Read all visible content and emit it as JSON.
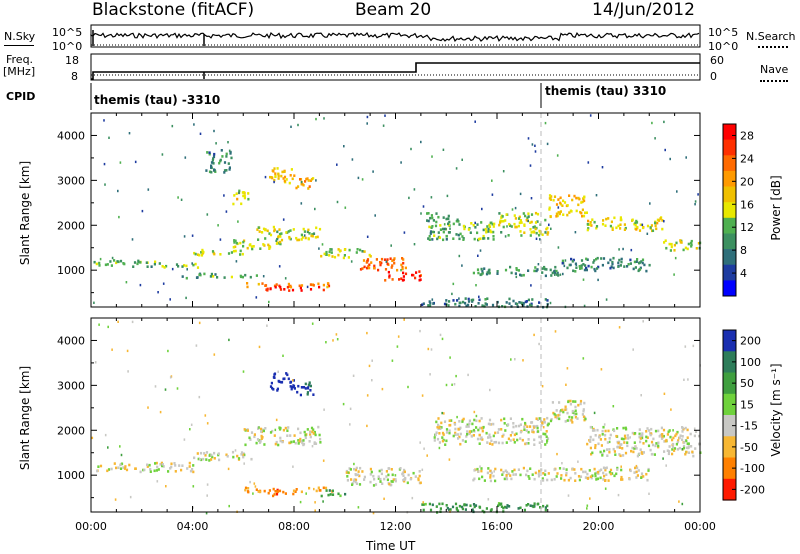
{
  "header": {
    "station": "Blackstone (fitACF)",
    "beam": "Beam 20",
    "date": "14/Jun/2012"
  },
  "top_panels": {
    "nsky_label": "N.Sky",
    "nsky_ticks": [
      "10^5",
      "10^0"
    ],
    "nsearch_label": "N.Search",
    "nsearch_ticks": [
      "10^5",
      "10^0"
    ],
    "freq_label": "Freq.",
    "freq_unit": "[MHz]",
    "freq_ticks": [
      "18",
      "8"
    ],
    "nave_label": "Nave",
    "nave_ticks": [
      "60",
      "0"
    ],
    "cpid_label": "CPID",
    "cpid_left": "themis (tau) -3310",
    "cpid_right": "themis (tau) 3310"
  },
  "chart_data": [
    {
      "type": "heatmap",
      "name": "power",
      "ylabel": "Slant Range [km]",
      "yticks": [
        "4000",
        "3000",
        "2000",
        "1000"
      ],
      "ylim": [
        180,
        4500
      ],
      "xlim": [
        0,
        24
      ],
      "colorbar_label": "Power [dB]",
      "colorbar_ticks": [
        "28",
        "24",
        "20",
        "16",
        "12",
        "8",
        "4"
      ],
      "colorbar_range": [
        0,
        30
      ],
      "colors": [
        "#0000ff",
        "#1e3ca0",
        "#2f6f7a",
        "#3c9060",
        "#4fb050",
        "#e8e800",
        "#f0c000",
        "#ff9a00",
        "#ff6a00",
        "#ff3000",
        "#ff0000"
      ],
      "features": [
        {
          "t": [
            0.0,
            2.8
          ],
          "r": [
            1100,
            1250
          ],
          "v": 11
        },
        {
          "t": [
            2.8,
            4.2
          ],
          "r": [
            1080,
            1180
          ],
          "v": 12
        },
        {
          "t": [
            4.0,
            6.0
          ],
          "r": [
            1350,
            1500
          ],
          "v": 14
        },
        {
          "t": [
            5.5,
            7.5
          ],
          "r": [
            1500,
            1700
          ],
          "v": 15
        },
        {
          "t": [
            6.5,
            9.0
          ],
          "r": [
            1700,
            2000
          ],
          "v": 14
        },
        {
          "t": [
            7.0,
            8.0
          ],
          "r": [
            2900,
            3300
          ],
          "v": 18
        },
        {
          "t": [
            8.0,
            8.8
          ],
          "r": [
            2800,
            3100
          ],
          "v": 20
        },
        {
          "t": [
            5.5,
            6.2
          ],
          "r": [
            2500,
            2800
          ],
          "v": 16
        },
        {
          "t": [
            4.5,
            5.5
          ],
          "r": [
            3200,
            3700
          ],
          "v": 8
        },
        {
          "t": [
            6.0,
            9.5
          ],
          "r": [
            650,
            750
          ],
          "v": 22
        },
        {
          "t": [
            6.8,
            9.2
          ],
          "r": [
            560,
            660
          ],
          "v": 29
        },
        {
          "t": [
            3.5,
            6.5
          ],
          "r": [
            850,
            950
          ],
          "v": 10
        },
        {
          "t": [
            9.0,
            11.0
          ],
          "r": [
            1300,
            1500
          ],
          "v": 14
        },
        {
          "t": [
            10.5,
            12.5
          ],
          "r": [
            1000,
            1300
          ],
          "v": 24
        },
        {
          "t": [
            11.5,
            13.0
          ],
          "r": [
            800,
            1000
          ],
          "v": 28
        },
        {
          "t": [
            13.2,
            14.5
          ],
          "r": [
            1700,
            2300
          ],
          "v": 10
        },
        {
          "t": [
            14.5,
            16.0
          ],
          "r": [
            1700,
            2100
          ],
          "v": 12
        },
        {
          "t": [
            16.0,
            18.0
          ],
          "r": [
            1800,
            2300
          ],
          "v": 14
        },
        {
          "t": [
            18.0,
            19.5
          ],
          "r": [
            2200,
            2700
          ],
          "v": 18
        },
        {
          "t": [
            19.5,
            22.5
          ],
          "r": [
            1900,
            2200
          ],
          "v": 16
        },
        {
          "t": [
            22.5,
            24.0
          ],
          "r": [
            1450,
            1700
          ],
          "v": 14
        },
        {
          "t": [
            15.0,
            18.5
          ],
          "r": [
            900,
            1100
          ],
          "v": 9
        },
        {
          "t": [
            18.5,
            22.0
          ],
          "r": [
            1000,
            1300
          ],
          "v": 8
        },
        {
          "t": [
            13.0,
            18.0
          ],
          "r": [
            200,
            400
          ],
          "v": 7
        }
      ]
    },
    {
      "type": "heatmap",
      "name": "velocity",
      "ylabel": "Slant Range [km]",
      "yticks": [
        "4000",
        "3000",
        "2000",
        "1000"
      ],
      "ylim": [
        180,
        4500
      ],
      "xlim": [
        0,
        24
      ],
      "xlabel": "Time UT",
      "xticks": [
        "00:00",
        "04:00",
        "08:00",
        "12:00",
        "16:00",
        "20:00",
        "00:00"
      ],
      "colorbar_label": "Velocity [m s⁻¹]",
      "colorbar_ticks": [
        "200",
        "100",
        "50",
        "15",
        "-15",
        "-50",
        "-100",
        "-200"
      ],
      "colorbar_range": [
        -250,
        250
      ],
      "features": [
        {
          "t": [
            0.0,
            4.0
          ],
          "r": [
            1100,
            1300
          ],
          "v": 0
        },
        {
          "t": [
            4.0,
            6.5
          ],
          "r": [
            1350,
            1550
          ],
          "v": 0
        },
        {
          "t": [
            6.0,
            9.0
          ],
          "r": [
            1700,
            2100
          ],
          "v": 0
        },
        {
          "t": [
            7.0,
            8.0
          ],
          "r": [
            2900,
            3300
          ],
          "v": 180
        },
        {
          "t": [
            8.0,
            8.8
          ],
          "r": [
            2800,
            3100
          ],
          "v": 150
        },
        {
          "t": [
            6.0,
            9.5
          ],
          "r": [
            650,
            750
          ],
          "v": -60
        },
        {
          "t": [
            6.8,
            8.0
          ],
          "r": [
            560,
            700
          ],
          "v": -80
        },
        {
          "t": [
            9.0,
            10.0
          ],
          "r": [
            560,
            700
          ],
          "v": 60
        },
        {
          "t": [
            10.0,
            13.0
          ],
          "r": [
            800,
            1200
          ],
          "v": 0
        },
        {
          "t": [
            13.5,
            18.0
          ],
          "r": [
            1700,
            2300
          ],
          "v": 0
        },
        {
          "t": [
            18.0,
            19.5
          ],
          "r": [
            2200,
            2700
          ],
          "v": 0
        },
        {
          "t": [
            19.5,
            24.0
          ],
          "r": [
            1450,
            2100
          ],
          "v": 0
        },
        {
          "t": [
            15.0,
            22.0
          ],
          "r": [
            900,
            1200
          ],
          "v": 0
        },
        {
          "t": [
            13.0,
            18.0
          ],
          "r": [
            200,
            400
          ],
          "v": 60
        }
      ]
    }
  ]
}
